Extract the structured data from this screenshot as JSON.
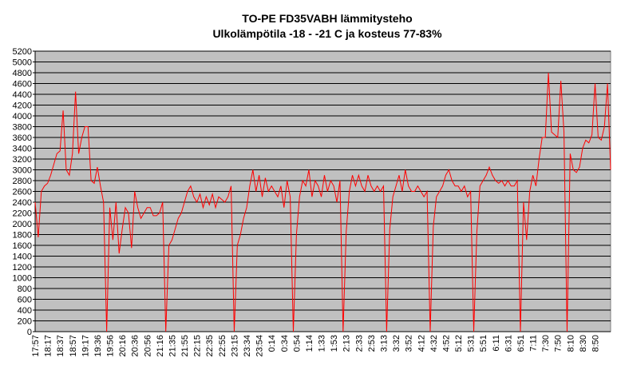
{
  "chart_data": {
    "type": "line",
    "title": "TO-PE FD35VABH lämmitysteho",
    "subtitle": "Ulkolämpötila  -18 - -21 C ja kosteus 77-83%",
    "categories": [
      "17:57",
      null,
      null,
      null,
      "18:17",
      null,
      null,
      null,
      "18:37",
      null,
      null,
      null,
      "18:57",
      null,
      null,
      null,
      "19:17",
      null,
      null,
      null,
      "19:36",
      null,
      null,
      null,
      "19:56",
      null,
      null,
      null,
      "20:16",
      null,
      null,
      null,
      "20:36",
      null,
      null,
      null,
      "20:56",
      null,
      null,
      null,
      "21:16",
      null,
      null,
      null,
      "21:35",
      null,
      null,
      null,
      "21:55",
      null,
      null,
      null,
      "22:15",
      null,
      null,
      null,
      "22:35",
      null,
      null,
      null,
      "22:55",
      null,
      null,
      null,
      "23:15",
      null,
      null,
      null,
      "23:34",
      null,
      null,
      null,
      "23:54",
      null,
      null,
      null,
      "0:14",
      null,
      null,
      null,
      "0:34",
      null,
      null,
      null,
      "0:54",
      null,
      null,
      null,
      "1:14",
      null,
      null,
      null,
      "1:33",
      null,
      null,
      null,
      "1:53",
      null,
      null,
      null,
      "2:13",
      null,
      null,
      null,
      "2:33",
      null,
      null,
      null,
      "2:53",
      null,
      null,
      null,
      "3:13",
      null,
      null,
      null,
      "3:32",
      null,
      null,
      null,
      "3:52",
      null,
      null,
      null,
      "4:12",
      null,
      null,
      null,
      "4:32",
      null,
      null,
      null,
      "4:52",
      null,
      null,
      null,
      "5:12",
      null,
      null,
      null,
      "5:31",
      null,
      null,
      null,
      "5:51",
      null,
      null,
      null,
      "6:11",
      null,
      null,
      null,
      "6:31",
      null,
      null,
      null,
      "6:51",
      null,
      null,
      null,
      "7:11",
      null,
      null,
      null,
      "7:30",
      null,
      null,
      null,
      "7:50",
      null,
      null,
      null,
      "8:10",
      null,
      null,
      null,
      "8:30",
      null,
      null,
      null,
      "8:50",
      null,
      null,
      null,
      null,
      null
    ],
    "series": [
      {
        "name": "lämmitysteho",
        "color": "#ff0000",
        "values": [
          2400,
          1750,
          2600,
          2700,
          2750,
          2900,
          3100,
          3300,
          3350,
          4100,
          3000,
          2900,
          3300,
          4450,
          3300,
          3600,
          3800,
          3800,
          2800,
          2750,
          3050,
          2700,
          2400,
          0,
          2300,
          1700,
          2400,
          1450,
          1900,
          2300,
          2200,
          1550,
          2600,
          2300,
          2100,
          2200,
          2300,
          2300,
          2150,
          2150,
          2200,
          2400,
          0,
          1600,
          1700,
          1900,
          2100,
          2200,
          2400,
          2600,
          2700,
          2500,
          2400,
          2550,
          2300,
          2500,
          2350,
          2550,
          2300,
          2500,
          2450,
          2400,
          2500,
          2700,
          0,
          1600,
          1800,
          2100,
          2300,
          2700,
          3000,
          2600,
          2900,
          2500,
          2850,
          2600,
          2700,
          2600,
          2500,
          2700,
          2300,
          2800,
          2500,
          0,
          1800,
          2500,
          2800,
          2700,
          3000,
          2500,
          2800,
          2700,
          2500,
          2900,
          2600,
          2800,
          2700,
          2400,
          2800,
          0,
          1850,
          2600,
          2900,
          2700,
          2900,
          2700,
          2600,
          2900,
          2700,
          2600,
          2700,
          2600,
          2700,
          0,
          1900,
          2500,
          2700,
          2900,
          2600,
          3000,
          2700,
          2600,
          2600,
          2700,
          2600,
          2500,
          2600,
          0,
          1950,
          2500,
          2600,
          2700,
          2900,
          3000,
          2800,
          2700,
          2700,
          2600,
          2700,
          2500,
          2600,
          0,
          1850,
          2700,
          2800,
          2900,
          3050,
          2900,
          2800,
          2750,
          2800,
          2700,
          2800,
          2700,
          2700,
          2800,
          0,
          2400,
          1700,
          2600,
          2900,
          2700,
          3200,
          3600,
          3600,
          4800,
          3700,
          3650,
          3600,
          4650,
          3700,
          0,
          3300,
          3000,
          2950,
          3050,
          3400,
          3550,
          3500,
          3650,
          4600,
          3600,
          3550,
          3800,
          4600,
          3000
        ]
      }
    ],
    "ylim": [
      0,
      5200
    ],
    "yticks": [
      0,
      200,
      400,
      600,
      800,
      1000,
      1200,
      1400,
      1600,
      1800,
      2000,
      2200,
      2400,
      2600,
      2800,
      3000,
      3200,
      3400,
      3600,
      3800,
      4000,
      4200,
      4400,
      4600,
      4800,
      5000,
      5200
    ],
    "grid": true
  }
}
